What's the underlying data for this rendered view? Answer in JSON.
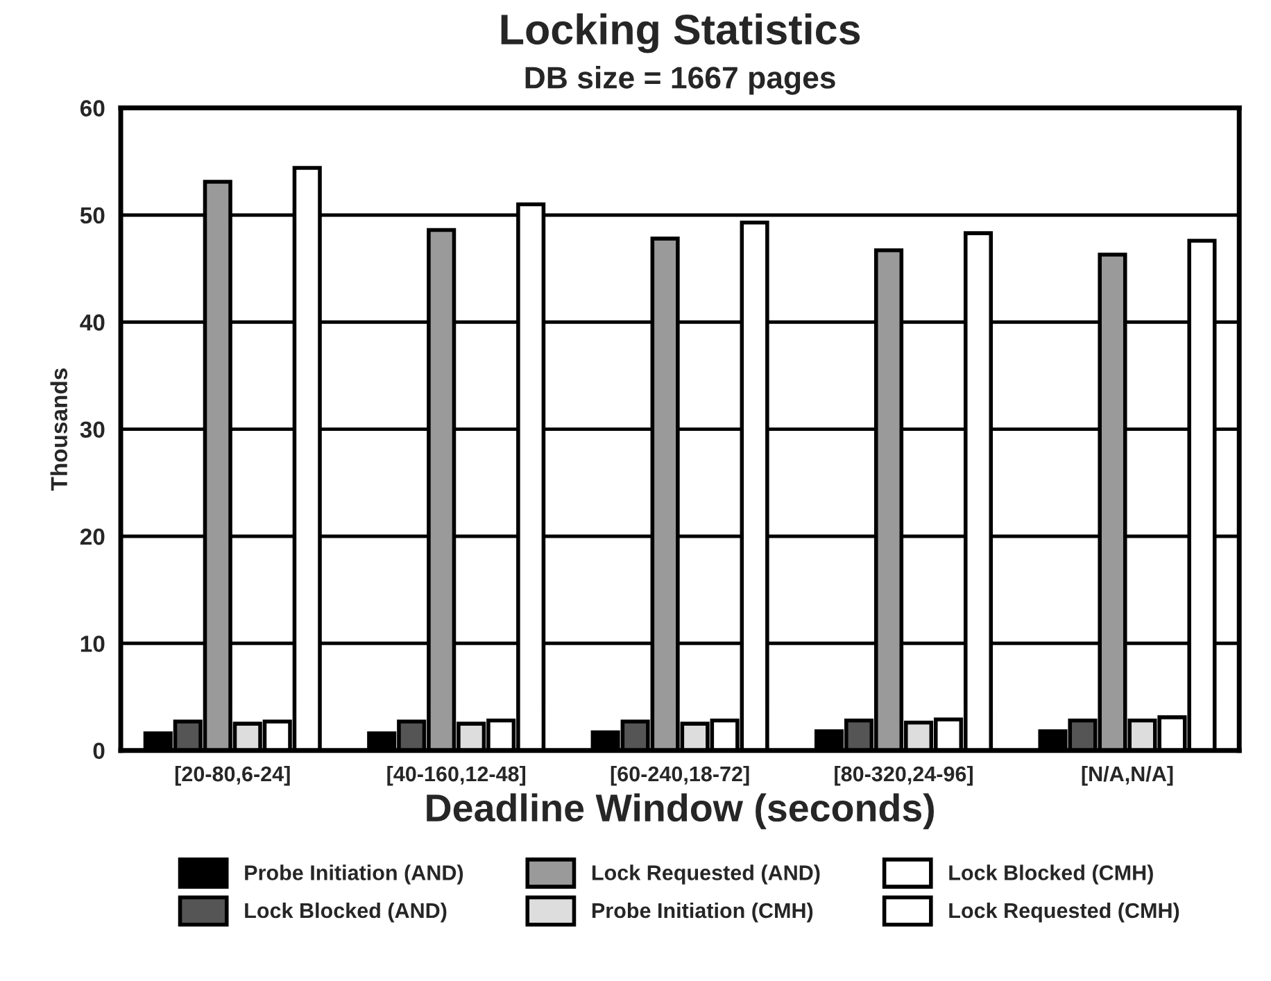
{
  "chart_data": {
    "type": "bar",
    "title": "Locking Statistics",
    "subtitle": "DB size = 1667 pages",
    "xlabel": "Deadline Window (seconds)",
    "ylabel": "Thousands",
    "categories": [
      "[20-80,6-24]",
      "[40-160,12-48]",
      "[60-240,18-72]",
      "[80-320,24-96]",
      "[N/A,N/A]"
    ],
    "series": [
      {
        "name": "Probe Initiation (AND)",
        "color": "#000000",
        "values": [
          1.6,
          1.6,
          1.7,
          1.8,
          1.8
        ]
      },
      {
        "name": "Lock Blocked (AND)",
        "color": "#555555",
        "values": [
          2.7,
          2.7,
          2.7,
          2.8,
          2.8
        ]
      },
      {
        "name": "Lock Requested (AND)",
        "color": "#9a9a9a",
        "values": [
          53.1,
          48.6,
          47.8,
          46.7,
          46.3
        ]
      },
      {
        "name": "Probe Initiation (CMH)",
        "color": "#dddddd",
        "values": [
          2.5,
          2.5,
          2.5,
          2.6,
          2.8
        ]
      },
      {
        "name": "Lock Blocked (CMH)",
        "color": "#ffffff",
        "values": [
          2.7,
          2.8,
          2.8,
          2.9,
          3.1
        ]
      },
      {
        "name": "Lock Requested (CMH)",
        "color": "#ffffff",
        "values": [
          54.4,
          51.0,
          49.3,
          48.3,
          47.6
        ]
      }
    ],
    "ylim": [
      0,
      60
    ],
    "yticks": [
      0,
      10,
      20,
      30,
      40,
      50,
      60
    ],
    "grid": "y",
    "legend": "bottom"
  }
}
